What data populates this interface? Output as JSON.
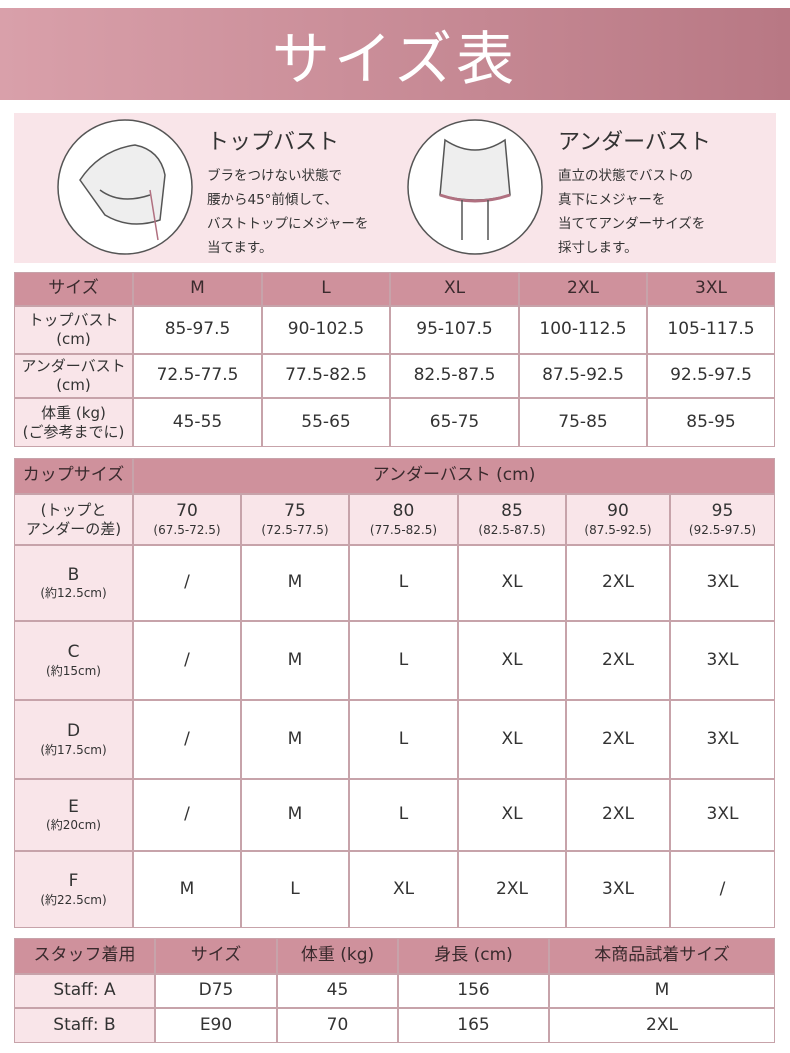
{
  "header": {
    "title": "サイズ表"
  },
  "measure": {
    "items": [
      {
        "title": "トップバスト",
        "lines": [
          "ブラをつけない状態で",
          "腰から45°前傾して、",
          "バストトップにメジャーを",
          "当てます。"
        ]
      },
      {
        "title": "アンダーバスト",
        "lines": [
          "直立の状態でバストの",
          "真下にメジャーを",
          "当ててアンダーサイズを",
          "採寸します。"
        ]
      }
    ]
  },
  "size_table": {
    "header": [
      "サイズ",
      "M",
      "L",
      "XL",
      "2XL",
      "3XL"
    ],
    "rows": [
      {
        "label": [
          "トップバスト",
          "(cm)"
        ],
        "cells": [
          "85-97.5",
          "90-102.5",
          "95-107.5",
          "100-112.5",
          "105-117.5"
        ]
      },
      {
        "label": [
          "アンダーバスト",
          "(cm)"
        ],
        "cells": [
          "72.5-77.5",
          "77.5-82.5",
          "82.5-87.5",
          "87.5-92.5",
          "92.5-97.5"
        ]
      },
      {
        "label": [
          "体重 (kg)",
          "(ご参考までに)"
        ],
        "cells": [
          "45-55",
          "55-65",
          "65-75",
          "75-85",
          "85-95"
        ]
      }
    ]
  },
  "cup_table": {
    "corner": "カップサイズ",
    "corner_note": [
      "(トップと",
      "アンダーの差)"
    ],
    "group_header": "アンダーバスト (cm)",
    "columns": [
      {
        "value": "70",
        "range": "(67.5-72.5)"
      },
      {
        "value": "75",
        "range": "(72.5-77.5)"
      },
      {
        "value": "80",
        "range": "(77.5-82.5)"
      },
      {
        "value": "85",
        "range": "(82.5-87.5)"
      },
      {
        "value": "90",
        "range": "(87.5-92.5)"
      },
      {
        "value": "95",
        "range": "(92.5-97.5)"
      }
    ],
    "rows": [
      {
        "cup": "B",
        "note": "(約12.5cm)",
        "cells": [
          "/",
          "M",
          "L",
          "XL",
          "2XL",
          "3XL"
        ]
      },
      {
        "cup": "C",
        "note": "(約15cm)",
        "cells": [
          "/",
          "M",
          "L",
          "XL",
          "2XL",
          "3XL"
        ]
      },
      {
        "cup": "D",
        "note": "(約17.5cm)",
        "cells": [
          "/",
          "M",
          "L",
          "XL",
          "2XL",
          "3XL"
        ]
      },
      {
        "cup": "E",
        "note": "(約20cm)",
        "cells": [
          "/",
          "M",
          "L",
          "XL",
          "2XL",
          "3XL"
        ]
      },
      {
        "cup": "F",
        "note": "(約22.5cm)",
        "cells": [
          "M",
          "L",
          "XL",
          "2XL",
          "3XL",
          "/"
        ]
      }
    ]
  },
  "staff_table": {
    "header": [
      "スタッフ着用",
      "サイズ",
      "体重 (kg)",
      "身長 (cm)",
      "本商品試着サイズ"
    ],
    "rows": [
      [
        "Staff: A",
        "D75",
        "45",
        "156",
        "M"
      ],
      [
        "Staff: B",
        "E90",
        "70",
        "165",
        "2XL"
      ]
    ]
  }
}
